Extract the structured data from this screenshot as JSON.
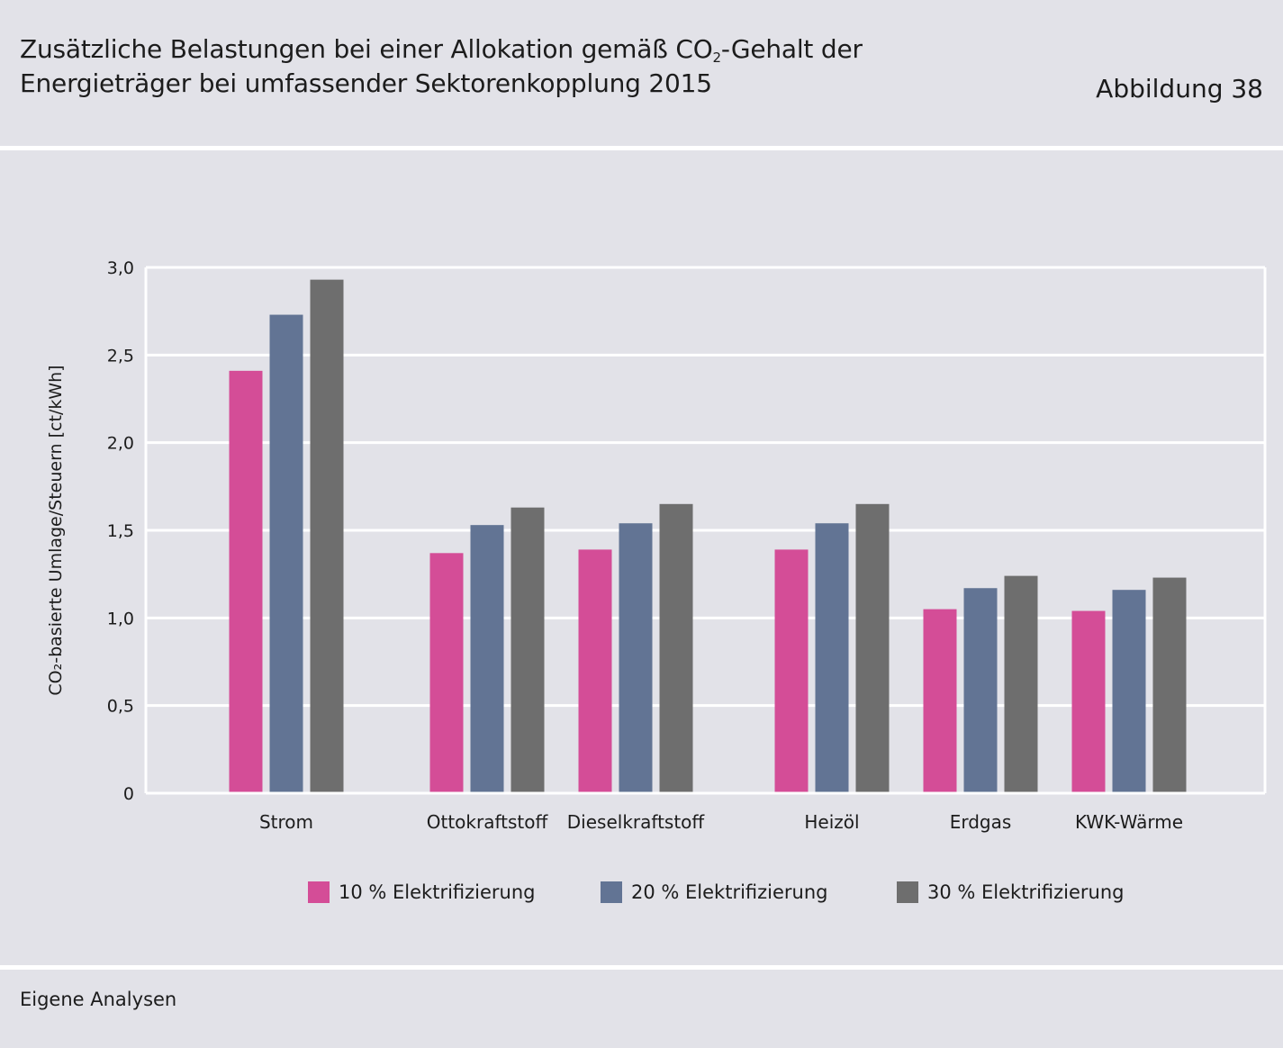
{
  "header": {
    "title_line1_a": "Zusätzliche Belastungen bei einer Allokation gemäß CO",
    "title_line1_sub": "2",
    "title_line1_b": "-Gehalt der",
    "title_line2": "Energieträger bei umfassender Sektorenkopplung 2015",
    "figure_number": "Abbildung 38"
  },
  "footer": {
    "source": "Eigene Analysen"
  },
  "chart_data": {
    "type": "bar",
    "ylabel": "CO₂-basierte Umlage/Steuern [ct/kWh]",
    "xlabel": "",
    "ylim": [
      0,
      3.0
    ],
    "yticks": [
      "0",
      "0,5",
      "1,0",
      "1,5",
      "2,0",
      "2,5",
      "3,0"
    ],
    "ytick_values": [
      0,
      0.5,
      1.0,
      1.5,
      2.0,
      2.5,
      3.0
    ],
    "grid": true,
    "legend_position": "bottom",
    "categories": [
      "Strom",
      "Ottokraftstoff",
      "Dieselkraftstoff",
      "Heizöl",
      "Erdgas",
      "KWK-Wärme"
    ],
    "category_groups": [
      0,
      1,
      1,
      2,
      2,
      2
    ],
    "series": [
      {
        "name": "10 % Elektrifizierung",
        "color": "#d44d97",
        "values": [
          2.41,
          1.37,
          1.39,
          1.39,
          1.05,
          1.04
        ]
      },
      {
        "name": "20 % Elektrifizierung",
        "color": "#627494",
        "values": [
          2.73,
          1.53,
          1.54,
          1.54,
          1.17,
          1.16
        ]
      },
      {
        "name": "30 % Elektrifizierung",
        "color": "#6e6e6e",
        "values": [
          2.93,
          1.63,
          1.65,
          1.65,
          1.24,
          1.23
        ]
      }
    ]
  }
}
